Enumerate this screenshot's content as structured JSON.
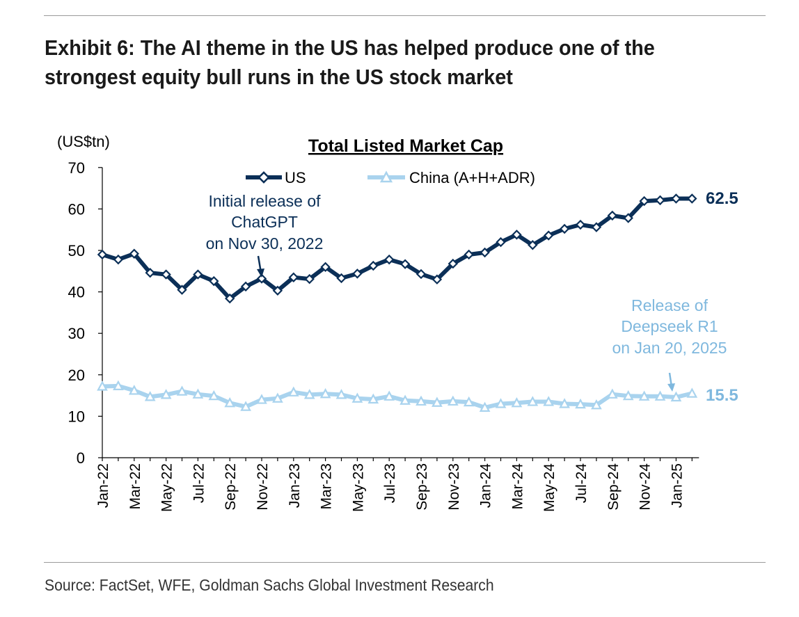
{
  "exhibit": {
    "title_line1": "Exhibit 6: The AI theme in the US has helped produce one of the",
    "title_line2": "strongest equity bull runs in the US stock market",
    "source": "Source: FactSet, WFE, Goldman Sachs Global Investment Research"
  },
  "colors": {
    "us": "#0b2f57",
    "china": "#a9d3ee",
    "us_label": "#0b2f57",
    "china_label": "#7fb8de",
    "axis": "#000000"
  },
  "chart_data": {
    "type": "line",
    "title": "Total Listed Market Cap",
    "ylabel": "(US$tn)",
    "xlabel": "",
    "ylim": [
      0,
      70
    ],
    "yticks": [
      0,
      10,
      20,
      30,
      40,
      50,
      60,
      70
    ],
    "x": [
      "Jan-22",
      "Feb-22",
      "Mar-22",
      "Apr-22",
      "May-22",
      "Jun-22",
      "Jul-22",
      "Aug-22",
      "Sep-22",
      "Oct-22",
      "Nov-22",
      "Dec-22",
      "Jan-23",
      "Feb-23",
      "Mar-23",
      "Apr-23",
      "May-23",
      "Jun-23",
      "Jul-23",
      "Aug-23",
      "Sep-23",
      "Oct-23",
      "Nov-23",
      "Dec-23",
      "Jan-24",
      "Feb-24",
      "Mar-24",
      "Apr-24",
      "May-24",
      "Jun-24",
      "Jul-24",
      "Aug-24",
      "Sep-24",
      "Oct-24",
      "Nov-24",
      "Dec-24",
      "Jan-25",
      "Feb-25"
    ],
    "xticklabels": [
      "Jan-22",
      "Mar-22",
      "May-22",
      "Jul-22",
      "Sep-22",
      "Nov-22",
      "Jan-23",
      "Mar-23",
      "May-23",
      "Jul-23",
      "Sep-23",
      "Nov-23",
      "Jan-24",
      "Mar-24",
      "May-24",
      "Jul-24",
      "Sep-24",
      "Nov-24",
      "Jan-25"
    ],
    "series": [
      {
        "name": "US",
        "values": [
          49.0,
          47.8,
          49.2,
          44.6,
          44.2,
          40.5,
          44.2,
          42.6,
          38.4,
          41.3,
          43.2,
          40.3,
          43.5,
          43.1,
          46.0,
          43.3,
          44.4,
          46.3,
          47.8,
          46.7,
          44.3,
          43.0,
          46.8,
          49.0,
          49.5,
          52.0,
          53.8,
          51.3,
          53.6,
          55.2,
          56.2,
          55.6,
          58.4,
          57.8,
          61.9,
          62.1,
          62.5,
          62.5
        ]
      },
      {
        "name": "China (A+H+ADR)",
        "values": [
          17.2,
          17.3,
          16.2,
          14.7,
          15.2,
          16.0,
          15.3,
          14.9,
          13.2,
          12.3,
          14.0,
          14.3,
          15.8,
          15.2,
          15.4,
          15.2,
          14.3,
          14.1,
          14.8,
          13.8,
          13.6,
          13.3,
          13.6,
          13.4,
          12.1,
          13.0,
          13.2,
          13.5,
          13.5,
          13.0,
          12.9,
          12.7,
          15.3,
          14.9,
          14.8,
          14.8,
          14.6,
          15.5
        ]
      }
    ],
    "end_labels": {
      "us": "62.5",
      "china": "15.5"
    },
    "annotations": {
      "chatgpt": [
        "Initial release of",
        "ChatGPT",
        "on Nov 30, 2022"
      ],
      "deepseek": [
        "Release of",
        "Deepseek R1",
        "on Jan 20, 2025"
      ]
    }
  }
}
